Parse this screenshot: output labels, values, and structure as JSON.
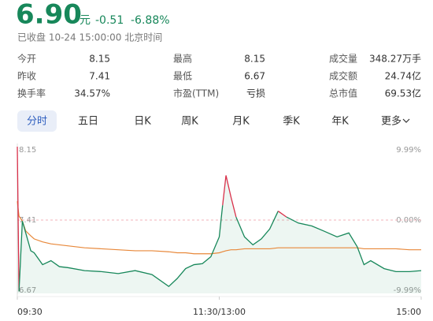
{
  "header": {
    "price": "6.90",
    "unit": "元",
    "change": "-0.51",
    "change_pct": "-6.88%",
    "status": "已收盘 10-24 15:00:00 北京时间"
  },
  "stats": [
    {
      "label": "今开",
      "value": "8.15"
    },
    {
      "label": "最高",
      "value": "8.15"
    },
    {
      "label": "成交量",
      "value": "348.27万手"
    },
    {
      "label": "昨收",
      "value": "7.41"
    },
    {
      "label": "最低",
      "value": "6.67"
    },
    {
      "label": "成交额",
      "value": "24.74亿"
    },
    {
      "label": "换手率",
      "value": "34.57%"
    },
    {
      "label": "市盈(TTM)",
      "value": "亏损"
    },
    {
      "label": "总市值",
      "value": "69.53亿"
    }
  ],
  "tabs": [
    "分时",
    "五日",
    "日K",
    "周K",
    "月K",
    "季K",
    "年K",
    "更多"
  ],
  "chart_data": {
    "type": "line",
    "x": [
      0,
      1,
      3,
      5,
      8,
      10,
      15,
      20,
      25,
      30,
      40,
      50,
      60,
      70,
      80,
      90,
      95,
      100,
      105,
      110,
      115,
      120,
      122,
      124,
      127,
      130,
      135,
      140,
      145,
      150,
      155,
      160,
      167,
      175,
      182,
      190,
      197,
      202,
      206,
      210,
      218,
      225,
      233,
      240
    ],
    "xlim": [
      0,
      240
    ],
    "xticks": [
      {
        "value": 0,
        "label": "09:30"
      },
      {
        "value": 120,
        "label": "11:30/13:00"
      },
      {
        "value": 240,
        "label": "15:00"
      }
    ],
    "series": [
      {
        "color": "#17875a",
        "up_color": "#d9304a",
        "values": [
          8.15,
          6.69,
          7.4,
          7.28,
          7.1,
          7.08,
          6.96,
          7.0,
          6.94,
          6.93,
          6.9,
          6.89,
          6.87,
          6.9,
          6.86,
          6.74,
          6.82,
          6.92,
          6.96,
          6.97,
          7.04,
          7.24,
          7.56,
          7.86,
          7.64,
          7.44,
          7.24,
          7.16,
          7.22,
          7.32,
          7.5,
          7.44,
          7.38,
          7.35,
          7.3,
          7.24,
          7.28,
          7.14,
          6.96,
          7.0,
          6.92,
          6.89,
          6.89,
          6.9
        ]
      },
      {
        "color": "#e8883a",
        "values": [
          7.6,
          7.45,
          7.4,
          7.3,
          7.25,
          7.22,
          7.19,
          7.17,
          7.16,
          7.15,
          7.13,
          7.12,
          7.11,
          7.1,
          7.1,
          7.09,
          7.08,
          7.08,
          7.07,
          7.07,
          7.07,
          7.08,
          7.09,
          7.1,
          7.11,
          7.11,
          7.12,
          7.12,
          7.12,
          7.12,
          7.13,
          7.13,
          7.13,
          7.13,
          7.13,
          7.13,
          7.13,
          7.13,
          7.12,
          7.12,
          7.12,
          7.12,
          7.11,
          7.11
        ]
      }
    ],
    "ylim": [
      6.67,
      8.15
    ],
    "yticks": [
      8.15,
      7.41,
      6.67
    ],
    "y2lim": [
      -9.99,
      9.99
    ],
    "y2ticks": [
      {
        "value": 9.99,
        "label": "9.99%"
      },
      {
        "value": 0,
        "label": "0.00%"
      },
      {
        "value": -9.99,
        "label": "-9.99%"
      }
    ]
  }
}
